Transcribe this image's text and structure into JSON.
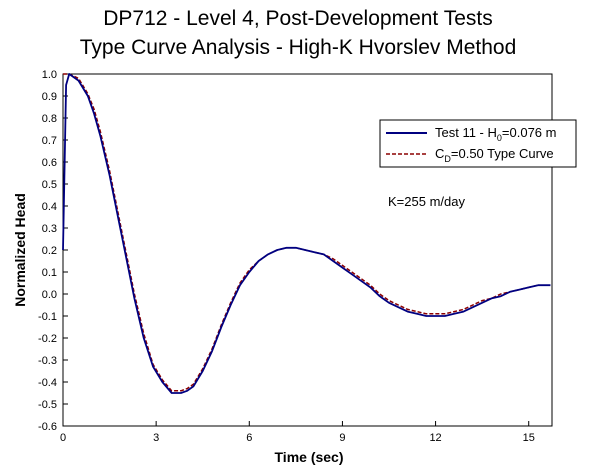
{
  "chart_data": {
    "type": "line",
    "title": "DP712 - Level 4, Post-Development Tests",
    "subtitle": "Type Curve Analysis - High-K Hvorslev Method",
    "xlabel": "Time (sec)",
    "ylabel": "Normalized Head",
    "xlim": [
      0,
      15.75
    ],
    "ylim": [
      -0.6,
      1.0
    ],
    "x_ticks": [
      0,
      3,
      6,
      9,
      12,
      15
    ],
    "x_tick_labels": [
      "0",
      "3",
      "6",
      "9",
      "12",
      "15"
    ],
    "y_ticks": [
      1.0,
      0.9,
      0.8,
      0.7,
      0.6,
      0.5,
      0.4,
      0.3,
      0.2,
      0.1,
      0.0,
      -0.1,
      -0.2,
      -0.3,
      -0.4,
      -0.5,
      -0.6
    ],
    "y_tick_labels": [
      "1.0",
      "0.9",
      "0.8",
      "0.7",
      "0.6",
      "0.5",
      "0.4",
      "0.3",
      "0.2",
      "0.1",
      "0.0",
      "-0.1",
      "-0.2",
      "-0.3",
      "-0.4",
      "-0.5",
      "-0.6"
    ],
    "grid": false,
    "legend_position": "top-right",
    "annotation": "K=255 m/day",
    "series": [
      {
        "name": "Test 11 - H0=0.076 m",
        "legend_main": "Test 11 - H",
        "legend_sub": "0",
        "legend_rest": "=0.076 m",
        "color": "#000080",
        "style": "solid",
        "x": [
          0,
          0.1,
          0.2,
          0.5,
          0.8,
          1.0,
          1.2,
          1.5,
          1.8,
          2.0,
          2.3,
          2.6,
          2.9,
          3.2,
          3.5,
          3.8,
          4.0,
          4.2,
          4.5,
          4.8,
          5.1,
          5.4,
          5.7,
          6.0,
          6.3,
          6.6,
          6.9,
          7.2,
          7.5,
          7.8,
          8.1,
          8.4,
          8.7,
          9.0,
          9.3,
          9.6,
          9.9,
          10.2,
          10.5,
          10.8,
          11.1,
          11.4,
          11.7,
          12.0,
          12.3,
          12.6,
          12.9,
          13.2,
          13.5,
          13.8,
          14.1,
          14.4,
          14.7,
          15.0,
          15.3,
          15.7
        ],
        "y": [
          0.2,
          0.95,
          1.0,
          0.97,
          0.9,
          0.82,
          0.72,
          0.54,
          0.33,
          0.19,
          -0.02,
          -0.2,
          -0.33,
          -0.4,
          -0.45,
          -0.45,
          -0.44,
          -0.42,
          -0.35,
          -0.26,
          -0.15,
          -0.05,
          0.04,
          0.1,
          0.15,
          0.18,
          0.2,
          0.21,
          0.21,
          0.2,
          0.19,
          0.18,
          0.15,
          0.12,
          0.09,
          0.06,
          0.03,
          -0.01,
          -0.04,
          -0.06,
          -0.08,
          -0.09,
          -0.1,
          -0.1,
          -0.1,
          -0.09,
          -0.08,
          -0.06,
          -0.04,
          -0.02,
          -0.01,
          0.01,
          0.02,
          0.03,
          0.04,
          0.04
        ]
      },
      {
        "name": "CD=0.50 Type Curve",
        "legend_main": "C",
        "legend_sub": "D",
        "legend_rest": "=0.50 Type Curve",
        "color": "#8b0000",
        "style": "dashed",
        "x": [
          0,
          0.1,
          0.2,
          0.5,
          0.8,
          1.0,
          1.2,
          1.5,
          1.8,
          2.0,
          2.3,
          2.6,
          2.9,
          3.2,
          3.5,
          3.8,
          4.0,
          4.2,
          4.5,
          4.8,
          5.1,
          5.4,
          5.7,
          6.0,
          6.3,
          6.6,
          6.9,
          7.2,
          7.5,
          7.8,
          8.1,
          8.4,
          8.7,
          9.0,
          9.3,
          9.6,
          9.9,
          10.2,
          10.5,
          10.8,
          11.1,
          11.4,
          11.7,
          12.0,
          12.3,
          12.6,
          12.9,
          13.2,
          13.5,
          13.8,
          14.1,
          14.4,
          14.7,
          15.0,
          15.3,
          15.7
        ],
        "y": [
          1.0,
          1.0,
          1.0,
          0.98,
          0.91,
          0.84,
          0.74,
          0.56,
          0.35,
          0.21,
          0.0,
          -0.18,
          -0.32,
          -0.39,
          -0.44,
          -0.44,
          -0.43,
          -0.41,
          -0.34,
          -0.25,
          -0.14,
          -0.04,
          0.05,
          0.11,
          0.15,
          0.18,
          0.2,
          0.21,
          0.21,
          0.2,
          0.19,
          0.18,
          0.16,
          0.13,
          0.1,
          0.07,
          0.04,
          0.0,
          -0.03,
          -0.05,
          -0.07,
          -0.08,
          -0.09,
          -0.09,
          -0.09,
          -0.08,
          -0.07,
          -0.05,
          -0.03,
          -0.02,
          0.0,
          0.01,
          0.02,
          0.03,
          0.04,
          0.04
        ]
      }
    ]
  }
}
